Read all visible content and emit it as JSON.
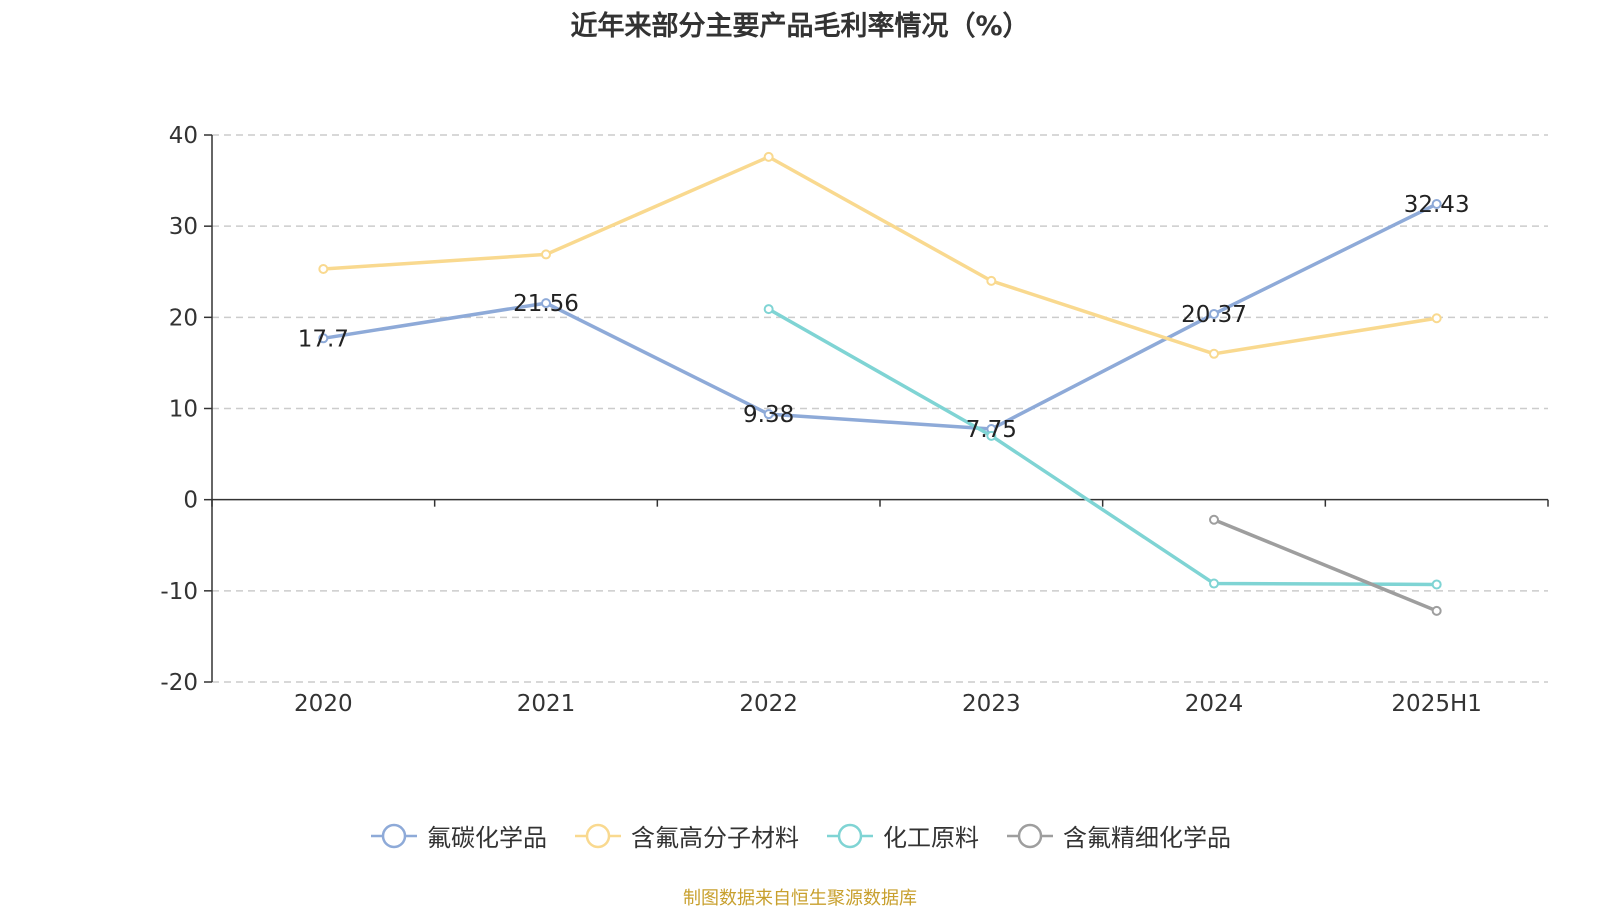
{
  "chart_data": {
    "type": "line",
    "title": "近年来部分主要产品毛利率情况（%）",
    "categories": [
      "2020",
      "2021",
      "2022",
      "2023",
      "2024",
      "2025H1"
    ],
    "ylim": [
      -20,
      40
    ],
    "yticks": [
      40,
      30,
      20,
      10,
      0,
      -10,
      -20
    ],
    "grid": true,
    "legend_position": "bottom",
    "series": [
      {
        "name": "氟碳化学品",
        "color": "#8eaad8",
        "values": [
          17.7,
          21.56,
          9.38,
          7.75,
          20.37,
          32.43
        ],
        "labels": [
          "17.7",
          "21.56",
          "9.38",
          "7.75",
          "20.37",
          "32.43"
        ]
      },
      {
        "name": "含氟高分子材料",
        "color": "#f9d98f",
        "values": [
          25.3,
          26.9,
          37.6,
          24.0,
          16.0,
          19.9
        ]
      },
      {
        "name": "化工原料",
        "color": "#7fd4d4",
        "values": [
          null,
          null,
          20.9,
          7.0,
          -9.2,
          -9.3
        ]
      },
      {
        "name": "含氟精细化学品",
        "color": "#9e9e9e",
        "values": [
          null,
          null,
          null,
          null,
          -2.2,
          -12.2
        ]
      }
    ]
  },
  "source_note": "制图数据来自恒生聚源数据库"
}
